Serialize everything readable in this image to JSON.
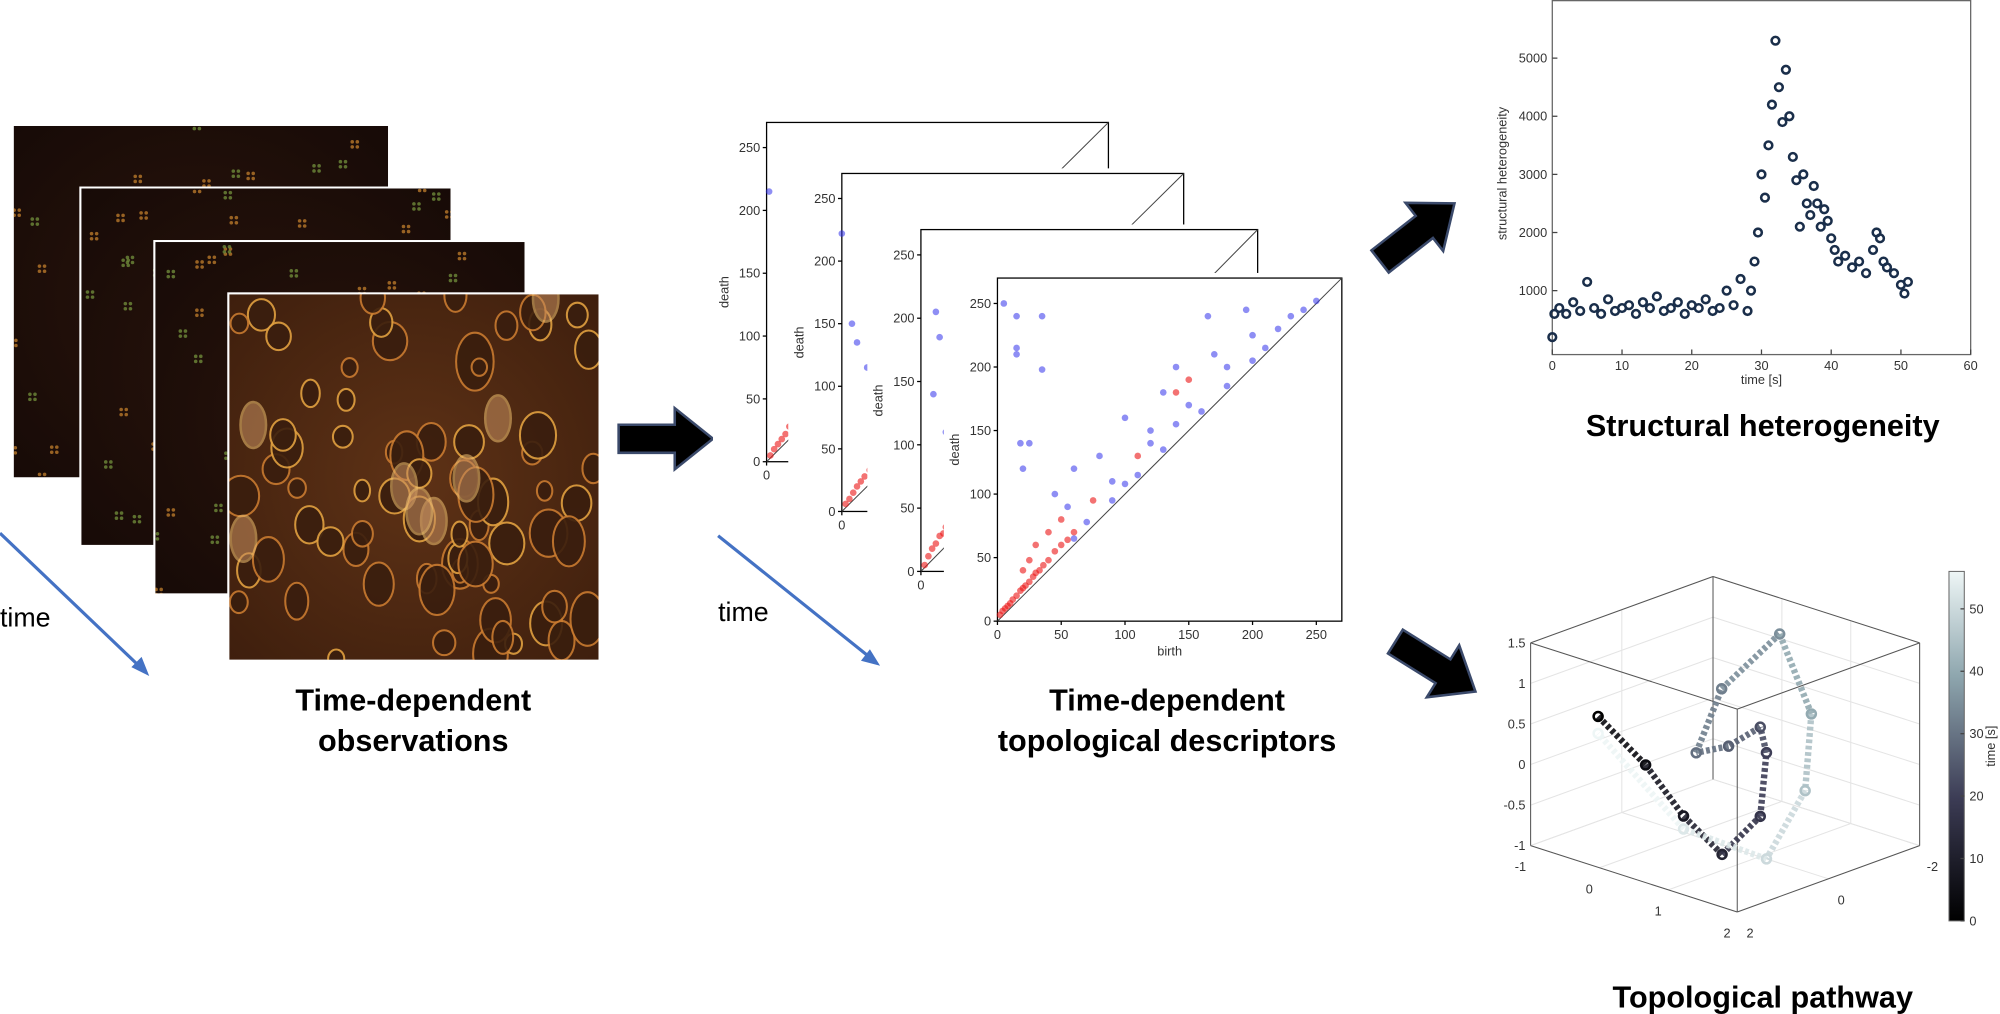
{
  "left_panel": {
    "time_label": "time",
    "caption": [
      "Time-dependent",
      "observations"
    ]
  },
  "middle_panel": {
    "time_label": "time",
    "caption": [
      "Time-dependent",
      "topological descriptors"
    ],
    "xlim": [
      0,
      270
    ],
    "ylim": [
      0,
      270
    ],
    "ticks": [
      0,
      50,
      100,
      150,
      200,
      250
    ],
    "xlabel": "birth",
    "ylabel": "death",
    "diagrams": [
      {
        "red": [
          [
            3,
            5
          ],
          [
            6,
            10
          ],
          [
            9,
            14
          ],
          [
            12,
            18
          ],
          [
            15,
            22
          ],
          [
            18,
            28
          ]
        ],
        "blue": [
          [
            2,
            215
          ]
        ]
      },
      {
        "red": [
          [
            3,
            6
          ],
          [
            6,
            10
          ],
          [
            9,
            15
          ],
          [
            12,
            20
          ],
          [
            15,
            24
          ],
          [
            18,
            28
          ],
          [
            22,
            33
          ]
        ],
        "blue": [
          [
            0,
            222
          ],
          [
            24,
            203
          ],
          [
            8,
            150
          ],
          [
            12,
            135
          ],
          [
            20,
            115
          ]
        ]
      },
      {
        "red": [
          [
            3,
            5
          ],
          [
            6,
            12
          ],
          [
            9,
            18
          ],
          [
            12,
            22
          ],
          [
            15,
            28
          ],
          [
            18,
            30
          ],
          [
            20,
            35
          ]
        ],
        "blue": [
          [
            15,
            185
          ],
          [
            12,
            205
          ],
          [
            10,
            140
          ],
          [
            20,
            110
          ],
          [
            25,
            45
          ]
        ]
      },
      {
        "red": [
          [
            2,
            5
          ],
          [
            4,
            8
          ],
          [
            6,
            10
          ],
          [
            8,
            12
          ],
          [
            10,
            14
          ],
          [
            12,
            17
          ],
          [
            15,
            20
          ],
          [
            18,
            24
          ],
          [
            20,
            26
          ],
          [
            22,
            28
          ],
          [
            25,
            31
          ],
          [
            28,
            35
          ],
          [
            30,
            38
          ],
          [
            33,
            40
          ],
          [
            36,
            44
          ],
          [
            40,
            48
          ],
          [
            45,
            55
          ],
          [
            50,
            60
          ],
          [
            55,
            64
          ],
          [
            60,
            70
          ],
          [
            20,
            40
          ],
          [
            25,
            48
          ],
          [
            30,
            60
          ],
          [
            40,
            70
          ],
          [
            50,
            80
          ],
          [
            75,
            95
          ],
          [
            110,
            130
          ],
          [
            140,
            180
          ],
          [
            150,
            190
          ]
        ],
        "blue": [
          [
            5,
            250
          ],
          [
            15,
            240
          ],
          [
            15,
            215
          ],
          [
            15,
            210
          ],
          [
            35,
            240
          ],
          [
            35,
            198
          ],
          [
            18,
            140
          ],
          [
            25,
            140
          ],
          [
            20,
            120
          ],
          [
            45,
            100
          ],
          [
            60,
            120
          ],
          [
            55,
            90
          ],
          [
            80,
            130
          ],
          [
            90,
            110
          ],
          [
            100,
            160
          ],
          [
            120,
            150
          ],
          [
            130,
            180
          ],
          [
            140,
            200
          ],
          [
            150,
            170
          ],
          [
            165,
            240
          ],
          [
            170,
            210
          ],
          [
            180,
            200
          ],
          [
            195,
            245
          ],
          [
            200,
            225
          ],
          [
            210,
            215
          ],
          [
            220,
            230
          ],
          [
            230,
            240
          ],
          [
            240,
            245
          ],
          [
            250,
            252
          ],
          [
            60,
            65
          ],
          [
            70,
            78
          ],
          [
            90,
            95
          ],
          [
            110,
            115
          ],
          [
            130,
            135
          ],
          [
            160,
            165
          ],
          [
            180,
            185
          ],
          [
            200,
            205
          ],
          [
            120,
            140
          ],
          [
            140,
            155
          ],
          [
            100,
            108
          ]
        ]
      }
    ]
  },
  "heterogeneity": {
    "type": "scatter",
    "color": "#1a2e4a",
    "xlabel": "time [s]",
    "ylabel": "structural heterogeneity",
    "caption": "Structural heterogeneity",
    "xlim": [
      0,
      60
    ],
    "ylim": [
      -100,
      6000
    ],
    "xticks": [
      0,
      10,
      20,
      30,
      40,
      50,
      60
    ],
    "yticks": [
      1000,
      2000,
      3000,
      4000,
      5000
    ],
    "x": [
      0,
      0.3,
      1,
      2,
      3,
      4,
      5,
      6,
      7,
      8,
      9,
      10,
      11,
      12,
      13,
      14,
      15,
      16,
      17,
      18,
      19,
      20,
      21,
      22,
      23,
      24,
      25,
      26,
      27,
      28,
      28.5,
      29,
      29.5,
      30,
      30.5,
      31,
      31.5,
      32,
      32.5,
      33,
      33.5,
      34,
      34.5,
      35,
      35.5,
      36,
      36.5,
      37,
      37.5,
      38,
      38.5,
      39,
      39.5,
      40,
      40.5,
      41,
      42,
      43,
      44,
      45,
      46,
      46.5,
      47,
      47.5,
      48,
      49,
      50,
      50.5,
      51
    ],
    "y": [
      200,
      600,
      700,
      600,
      800,
      650,
      1150,
      700,
      600,
      850,
      650,
      700,
      750,
      600,
      800,
      700,
      900,
      650,
      700,
      800,
      600,
      750,
      700,
      850,
      650,
      700,
      1000,
      750,
      1200,
      650,
      1000,
      1500,
      2000,
      3000,
      2600,
      3500,
      4200,
      5300,
      4500,
      3900,
      4800,
      4000,
      3300,
      2900,
      2100,
      3000,
      2500,
      2300,
      2800,
      2500,
      2100,
      2400,
      2200,
      1900,
      1700,
      1500,
      1600,
      1400,
      1500,
      1300,
      1700,
      2000,
      1900,
      1500,
      1400,
      1300,
      1100,
      950,
      1150
    ]
  },
  "pathway": {
    "caption": "Topological pathway",
    "xlim": [
      -1,
      2
    ],
    "ylim": [
      -2,
      2
    ],
    "zlim": [
      -1,
      1.5
    ],
    "xticks": [
      -1,
      0,
      1,
      2
    ],
    "yticks": [
      2,
      0,
      -2
    ],
    "zticks": [
      1.5,
      1,
      0.5,
      0,
      -0.5,
      -1
    ],
    "clim": [
      0,
      56
    ],
    "cticks": [
      0,
      10,
      20,
      30,
      40,
      50
    ],
    "clabel": "time [s]",
    "points": [
      [
        -0.02,
        2,
        0.86,
        0
      ],
      [
        0.67,
        2,
        0.45,
        4
      ],
      [
        1.22,
        2,
        -0.03,
        8
      ],
      [
        1.78,
        2,
        -0.35,
        12
      ],
      [
        1.01,
        0,
        -0.5,
        17
      ],
      [
        1.1,
        0,
        0.31,
        20
      ],
      [
        1.01,
        0,
        0.6,
        23
      ],
      [
        0.55,
        0,
        0.24,
        26
      ],
      [
        0.08,
        0,
        0.03,
        29
      ],
      [
        0.45,
        0,
        0.92,
        32
      ],
      [
        0.63,
        -1,
        1.44,
        35
      ],
      [
        1.09,
        -1,
        0.58,
        40
      ],
      [
        1.0,
        -1,
        -0.39,
        45
      ],
      [
        1.1,
        0,
        -1,
        50
      ],
      [
        1.22,
        2,
        -0.19,
        53
      ],
      [
        -0.02,
        2,
        0.65,
        56
      ]
    ]
  }
}
